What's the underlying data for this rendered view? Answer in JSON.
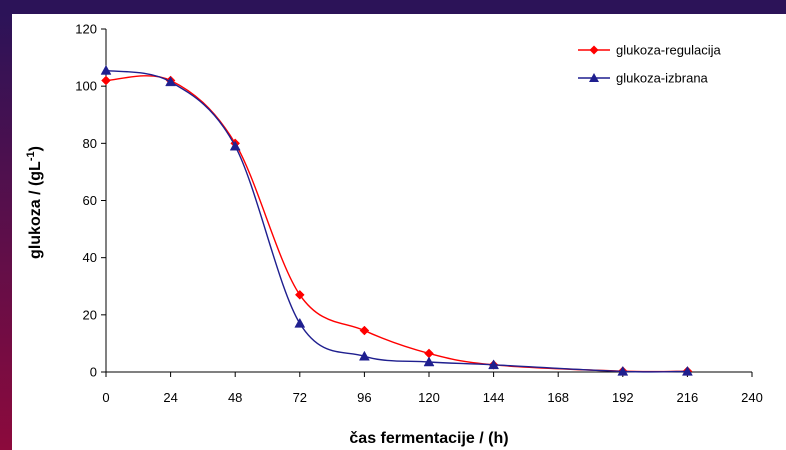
{
  "colors": {
    "frame_top": "#2c1358",
    "frame_left_top": "#2c1358",
    "frame_left_bottom": "#8c0a3c",
    "series_red": "#ff0000",
    "series_blue": "#1f1f8f"
  },
  "chart_data": {
    "type": "line",
    "title": "",
    "xlabel": "čas fermentacije / (h)",
    "ylabel": "glukoza / (gL",
    "ylabel_superscript": "-1",
    "ylabel_suffix": ")",
    "xlim": [
      0,
      240
    ],
    "ylim": [
      0,
      120
    ],
    "x_ticks": [
      0,
      24,
      48,
      72,
      96,
      120,
      144,
      168,
      192,
      216,
      240
    ],
    "y_ticks": [
      0,
      20,
      40,
      60,
      80,
      100,
      120
    ],
    "grid": false,
    "legend_position": "top-right",
    "series": [
      {
        "name": "glukoza-regulacija",
        "color": "#ff0000",
        "marker": "diamond",
        "points": [
          [
            0,
            102
          ],
          [
            24,
            102
          ],
          [
            48,
            80
          ],
          [
            72,
            27
          ],
          [
            96,
            14.5
          ],
          [
            120,
            6.5
          ],
          [
            144,
            2.5
          ],
          [
            192,
            0.3
          ],
          [
            216,
            0.3
          ]
        ]
      },
      {
        "name": "glukoza-izbrana",
        "color": "#1f1f8f",
        "marker": "triangle",
        "points": [
          [
            0,
            105.5
          ],
          [
            24,
            101.5
          ],
          [
            48,
            79
          ],
          [
            72,
            17
          ],
          [
            96,
            5.5
          ],
          [
            120,
            3.5
          ],
          [
            144,
            2.5
          ],
          [
            192,
            0.2
          ],
          [
            216,
            0.2
          ]
        ]
      }
    ]
  }
}
